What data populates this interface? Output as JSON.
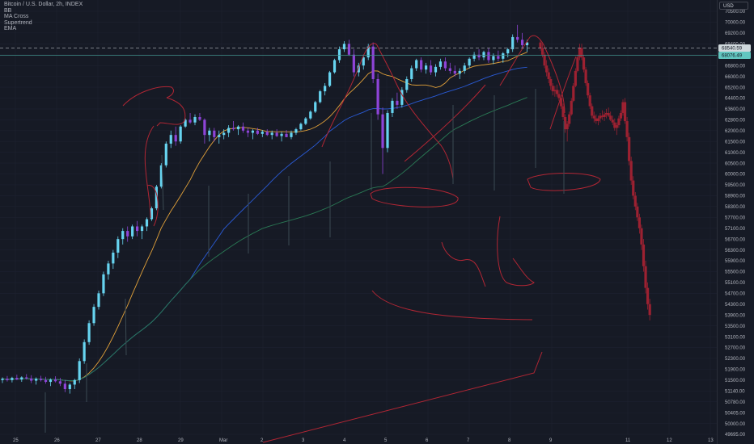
{
  "legend": {
    "title": "Bitcoin / U.S. Dollar, 2h, INDEX",
    "indicators": [
      "BB",
      "MA Cross",
      "Supertrend",
      "EMA"
    ]
  },
  "currency_button": "USD",
  "colors": {
    "background": "#161a25",
    "grid": "#1e2230",
    "up_candle": "#67d4f0",
    "down_candle": "#8e44d8",
    "projection": "#9c2131",
    "ema_orange": "#e3a23a",
    "ma_blue": "#2a5bd7",
    "ma_green": "#2a7a55",
    "annotation": "#b12634",
    "axis_text": "#b2b5be",
    "price_tag_light": "#cfd8dc",
    "price_tag_teal": "#62c6c0"
  },
  "chart_data": {
    "type": "candlestick",
    "title": "Bitcoin / U.S. Dollar, 2h, INDEX",
    "x_labels": [
      "25",
      "26",
      "27",
      "28",
      "29",
      "Mar",
      "2",
      "3",
      "4",
      "5",
      "6",
      "7",
      "8",
      "9",
      "11",
      "12",
      "13"
    ],
    "y_labels": [
      "70500.00",
      "70000.00",
      "69200.00",
      "68400.00",
      "67600.00",
      "66800.00",
      "66000.00",
      "65200.00",
      "64400.00",
      "63600.00",
      "62800.00",
      "62000.00",
      "61500.00",
      "61000.00",
      "60500.00",
      "60000.00",
      "59500.00",
      "58900.00",
      "58300.00",
      "57700.00",
      "57100.00",
      "56700.00",
      "56300.00",
      "55900.00",
      "55500.00",
      "55100.00",
      "54700.00",
      "54300.00",
      "53900.00",
      "53500.00",
      "53100.00",
      "52700.00",
      "52300.00",
      "51900.00",
      "51500.00",
      "51140.00",
      "50780.00",
      "50405.00",
      "50000.00",
      "49695.00"
    ],
    "price_tags": [
      {
        "label": "68540.59",
        "style": "light"
      },
      {
        "label": "68076.49",
        "style": "teal"
      }
    ],
    "grid": true,
    "series": [
      {
        "name": "BTCUSD candles",
        "kind": "candles",
        "ohlc": [
          [
            51500,
            51600,
            51400,
            51550
          ],
          [
            51550,
            51650,
            51450,
            51500
          ],
          [
            51500,
            51620,
            51420,
            51580
          ],
          [
            51580,
            51700,
            51500,
            51520
          ],
          [
            51520,
            51640,
            51440,
            51600
          ],
          [
            51600,
            51720,
            51520,
            51560
          ],
          [
            51560,
            51680,
            51400,
            51480
          ],
          [
            51480,
            51600,
            51350,
            51550
          ],
          [
            51550,
            51660,
            51450,
            51500
          ],
          [
            51500,
            51620,
            51380,
            51440
          ],
          [
            51440,
            51560,
            51300,
            51520
          ],
          [
            51520,
            51640,
            51420,
            51460
          ],
          [
            51460,
            51580,
            51300,
            51380
          ],
          [
            51380,
            51500,
            51100,
            51200
          ],
          [
            51200,
            51400,
            51050,
            51350
          ],
          [
            51350,
            51550,
            51200,
            51500
          ],
          [
            51500,
            52300,
            51400,
            52200
          ],
          [
            52200,
            53000,
            52100,
            52900
          ],
          [
            52900,
            53700,
            52800,
            53600
          ],
          [
            53600,
            54300,
            53500,
            54200
          ],
          [
            54200,
            54800,
            54100,
            54700
          ],
          [
            54700,
            55500,
            54600,
            55400
          ],
          [
            55400,
            55900,
            55200,
            55800
          ],
          [
            55800,
            56300,
            55600,
            56200
          ],
          [
            56200,
            56800,
            56000,
            56700
          ],
          [
            56700,
            57100,
            56500,
            57000
          ],
          [
            57000,
            57200,
            56600,
            56800
          ],
          [
            56800,
            57300,
            56700,
            57200
          ],
          [
            57200,
            57500,
            56800,
            57000
          ],
          [
            57000,
            57300,
            56700,
            57200
          ],
          [
            57200,
            57700,
            57000,
            57600
          ],
          [
            57600,
            58300,
            57500,
            58200
          ],
          [
            58200,
            59500,
            58100,
            59400
          ],
          [
            59400,
            60500,
            59300,
            60400
          ],
          [
            60400,
            61500,
            60300,
            61400
          ],
          [
            61400,
            62000,
            61200,
            61800
          ],
          [
            61800,
            62300,
            61300,
            61500
          ],
          [
            61500,
            62400,
            61400,
            62300
          ],
          [
            62300,
            62900,
            62200,
            62800
          ],
          [
            62800,
            63300,
            62500,
            62600
          ],
          [
            62600,
            63200,
            62400,
            63000
          ],
          [
            63000,
            63300,
            62700,
            62800
          ],
          [
            62800,
            62900,
            61400,
            61800
          ],
          [
            61800,
            62200,
            61500,
            62000
          ],
          [
            62000,
            62200,
            61500,
            61700
          ],
          [
            61700,
            62000,
            61400,
            61800
          ],
          [
            61800,
            62100,
            61600,
            61900
          ],
          [
            61900,
            62400,
            61700,
            62200
          ],
          [
            62200,
            62700,
            62000,
            62100
          ],
          [
            62100,
            62400,
            61800,
            62300
          ],
          [
            62300,
            62600,
            61900,
            62000
          ],
          [
            62000,
            62200,
            61700,
            61900
          ],
          [
            61900,
            62100,
            61600,
            62000
          ],
          [
            62000,
            62200,
            61800,
            61850
          ],
          [
            61850,
            62050,
            61700,
            61950
          ],
          [
            61950,
            62100,
            61750,
            61800
          ],
          [
            61800,
            62000,
            61600,
            61900
          ],
          [
            61900,
            62100,
            61700,
            61750
          ],
          [
            61750,
            61950,
            61500,
            61850
          ],
          [
            61850,
            62050,
            61700,
            61700
          ],
          [
            61700,
            62000,
            61600,
            61900
          ],
          [
            61900,
            62200,
            61800,
            62100
          ],
          [
            62100,
            62600,
            62000,
            62500
          ],
          [
            62500,
            63000,
            62400,
            62900
          ],
          [
            62900,
            63500,
            62800,
            63400
          ],
          [
            63400,
            64200,
            63300,
            64100
          ],
          [
            64100,
            65000,
            64000,
            64900
          ],
          [
            64900,
            65500,
            64600,
            65300
          ],
          [
            65300,
            66400,
            65200,
            66300
          ],
          [
            66300,
            67300,
            66200,
            67200
          ],
          [
            67200,
            68200,
            67000,
            68000
          ],
          [
            68000,
            68600,
            67800,
            68400
          ],
          [
            68400,
            68700,
            67500,
            67600
          ],
          [
            67600,
            68000,
            66000,
            66300
          ],
          [
            66300,
            67000,
            66000,
            66800
          ],
          [
            66800,
            67600,
            66500,
            67400
          ],
          [
            67400,
            68400,
            67200,
            68200
          ],
          [
            68200,
            68500,
            65500,
            65800
          ],
          [
            65800,
            66200,
            62800,
            63200
          ],
          [
            63200,
            63700,
            60000,
            61200
          ],
          [
            61200,
            63500,
            61000,
            63300
          ],
          [
            63300,
            64400,
            63000,
            64200
          ],
          [
            64200,
            64800,
            63600,
            63900
          ],
          [
            63900,
            65200,
            63700,
            65000
          ],
          [
            65000,
            66000,
            64800,
            65800
          ],
          [
            65800,
            66800,
            65600,
            66600
          ],
          [
            66600,
            67300,
            66400,
            67200
          ],
          [
            67200,
            67400,
            66300,
            66500
          ],
          [
            66500,
            67000,
            66200,
            66800
          ],
          [
            66800,
            67200,
            66100,
            66300
          ],
          [
            66300,
            66900,
            66000,
            66700
          ],
          [
            66700,
            67300,
            66500,
            67100
          ],
          [
            67100,
            67400,
            66400,
            66600
          ],
          [
            66600,
            67000,
            66200,
            66400
          ],
          [
            66400,
            66800,
            66000,
            66200
          ],
          [
            66200,
            66600,
            65800,
            66400
          ],
          [
            66400,
            67000,
            66200,
            66800
          ],
          [
            66800,
            67400,
            66600,
            67300
          ],
          [
            67300,
            67800,
            67100,
            67600
          ],
          [
            67600,
            68000,
            67200,
            67400
          ],
          [
            67400,
            67900,
            67200,
            67800
          ],
          [
            67800,
            68100,
            67000,
            67200
          ],
          [
            67200,
            67700,
            66900,
            67500
          ],
          [
            67500,
            67900,
            67100,
            67300
          ],
          [
            67300,
            67800,
            67000,
            67700
          ],
          [
            67700,
            68100,
            67400,
            68000
          ],
          [
            68000,
            69100,
            67800,
            68900
          ],
          [
            68900,
            69800,
            68500,
            68700
          ],
          [
            68700,
            69200,
            68000,
            68300
          ],
          [
            68300,
            68700,
            67800,
            68500
          ]
        ]
      },
      {
        "name": "Projection",
        "kind": "candles",
        "ohlc": [
          [
            68500,
            68700,
            67900,
            68100
          ],
          [
            68100,
            68400,
            67400,
            67600
          ],
          [
            67600,
            67800,
            66600,
            66800
          ],
          [
            66800,
            67200,
            66000,
            66300
          ],
          [
            66300,
            66600,
            65500,
            65800
          ],
          [
            65800,
            66000,
            65000,
            65300
          ],
          [
            65300,
            65500,
            64600,
            64900
          ],
          [
            64900,
            65300,
            64500,
            65000
          ],
          [
            65000,
            65400,
            64500,
            64700
          ],
          [
            64700,
            65000,
            64200,
            64400
          ],
          [
            64400,
            64600,
            63600,
            63800
          ],
          [
            63800,
            64000,
            62800,
            63000
          ],
          [
            63000,
            63200,
            61900,
            62100
          ],
          [
            62100,
            62700,
            61500,
            62500
          ],
          [
            62500,
            63400,
            62300,
            63200
          ],
          [
            63200,
            64400,
            63100,
            64200
          ],
          [
            64200,
            65500,
            64100,
            65300
          ],
          [
            65300,
            66600,
            65200,
            66400
          ],
          [
            66400,
            67600,
            66300,
            67400
          ],
          [
            67400,
            68400,
            67200,
            68100
          ],
          [
            68100,
            68400,
            67200,
            67400
          ],
          [
            67400,
            67600,
            66300,
            66500
          ],
          [
            66500,
            66700,
            65300,
            65500
          ],
          [
            65500,
            65700,
            64400,
            64600
          ],
          [
            64600,
            64800,
            63600,
            63800
          ],
          [
            63800,
            64000,
            62900,
            63100
          ],
          [
            63100,
            63400,
            62600,
            62900
          ],
          [
            62900,
            63200,
            62500,
            62700
          ],
          [
            62700,
            63100,
            62400,
            62900
          ],
          [
            62900,
            63300,
            62600,
            63100
          ],
          [
            63100,
            63500,
            62800,
            63000
          ],
          [
            63000,
            63400,
            62700,
            63200
          ],
          [
            63200,
            63600,
            62900,
            63300
          ],
          [
            63300,
            63700,
            63000,
            63100
          ],
          [
            63100,
            63400,
            62700,
            62800
          ],
          [
            62800,
            63100,
            62400,
            62600
          ],
          [
            62600,
            62900,
            62000,
            62200
          ],
          [
            62200,
            62600,
            61800,
            62400
          ],
          [
            62400,
            63100,
            62200,
            62900
          ],
          [
            62900,
            63500,
            62700,
            63300
          ],
          [
            63300,
            64300,
            63100,
            64100
          ],
          [
            64100,
            64400,
            62500,
            62700
          ],
          [
            62700,
            63000,
            61500,
            61700
          ],
          [
            61700,
            61900,
            60400,
            60600
          ],
          [
            60600,
            60800,
            59500,
            59700
          ],
          [
            59700,
            59900,
            58700,
            58900
          ],
          [
            58900,
            59100,
            58100,
            58300
          ],
          [
            58300,
            58500,
            57500,
            57700
          ],
          [
            57700,
            57900,
            56900,
            57100
          ],
          [
            57100,
            57300,
            56300,
            56500
          ],
          [
            56500,
            56700,
            55500,
            55700
          ],
          [
            55700,
            55900,
            54700,
            54900
          ],
          [
            54900,
            55100,
            54100,
            54300
          ],
          [
            54300,
            54500,
            53700,
            53900
          ]
        ]
      },
      {
        "name": "EMA",
        "kind": "line",
        "color": "#e3a23a"
      },
      {
        "name": "MA blue",
        "kind": "line",
        "color": "#2a5bd7"
      },
      {
        "name": "MA green",
        "kind": "line",
        "color": "#2a7a55"
      }
    ]
  }
}
